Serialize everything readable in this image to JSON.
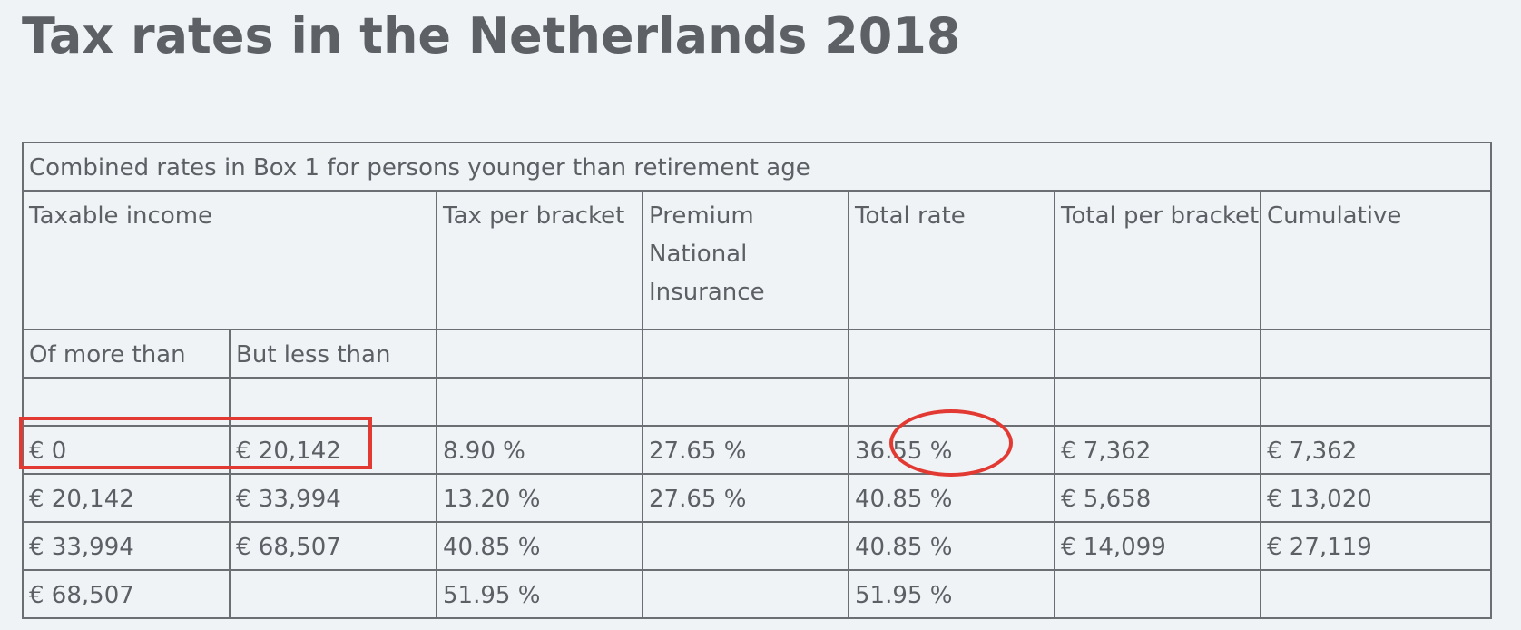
{
  "title": "Tax rates in the Netherlands 2018",
  "table": {
    "caption": "Combined rates in Box 1 for persons younger than retirement age",
    "headers": {
      "taxable_income": "Taxable income",
      "tax_per_bracket": "Tax per bracket",
      "premium": "Premium National Insurance",
      "total_rate": "Total rate",
      "total_per_bracket": "Total per bracket",
      "cumulative": "Cumulative"
    },
    "subheaders": {
      "of_more_than": "Of more than",
      "but_less_than": "But less than"
    },
    "rows": [
      {
        "more_than": "€ 0",
        "less_than": "€ 20,142",
        "tax": "8.90 %",
        "premium": "27.65 %",
        "total_rate": "36.55 %",
        "total_per_bracket": "€ 7,362",
        "cumulative": "€ 7,362"
      },
      {
        "more_than": "€ 20,142",
        "less_than": "€ 33,994",
        "tax": "13.20 %",
        "premium": "27.65 %",
        "total_rate": "40.85 %",
        "total_per_bracket": "€ 5,658",
        "cumulative": "€ 13,020"
      },
      {
        "more_than": "€ 33,994",
        "less_than": "€ 68,507",
        "tax": "40.85 %",
        "premium": "",
        "total_rate": "40.85 %",
        "total_per_bracket": "€ 14,099",
        "cumulative": "€ 27,119"
      },
      {
        "more_than": "€ 68,507",
        "less_than": "",
        "tax": "51.95 %",
        "premium": "",
        "total_rate": "51.95 %",
        "total_per_bracket": "",
        "cumulative": ""
      }
    ]
  },
  "annotations": {
    "color": "#e23a32",
    "highlighted_bracket": "€ 0 – € 20,142",
    "highlighted_rate": "36.55 %"
  }
}
